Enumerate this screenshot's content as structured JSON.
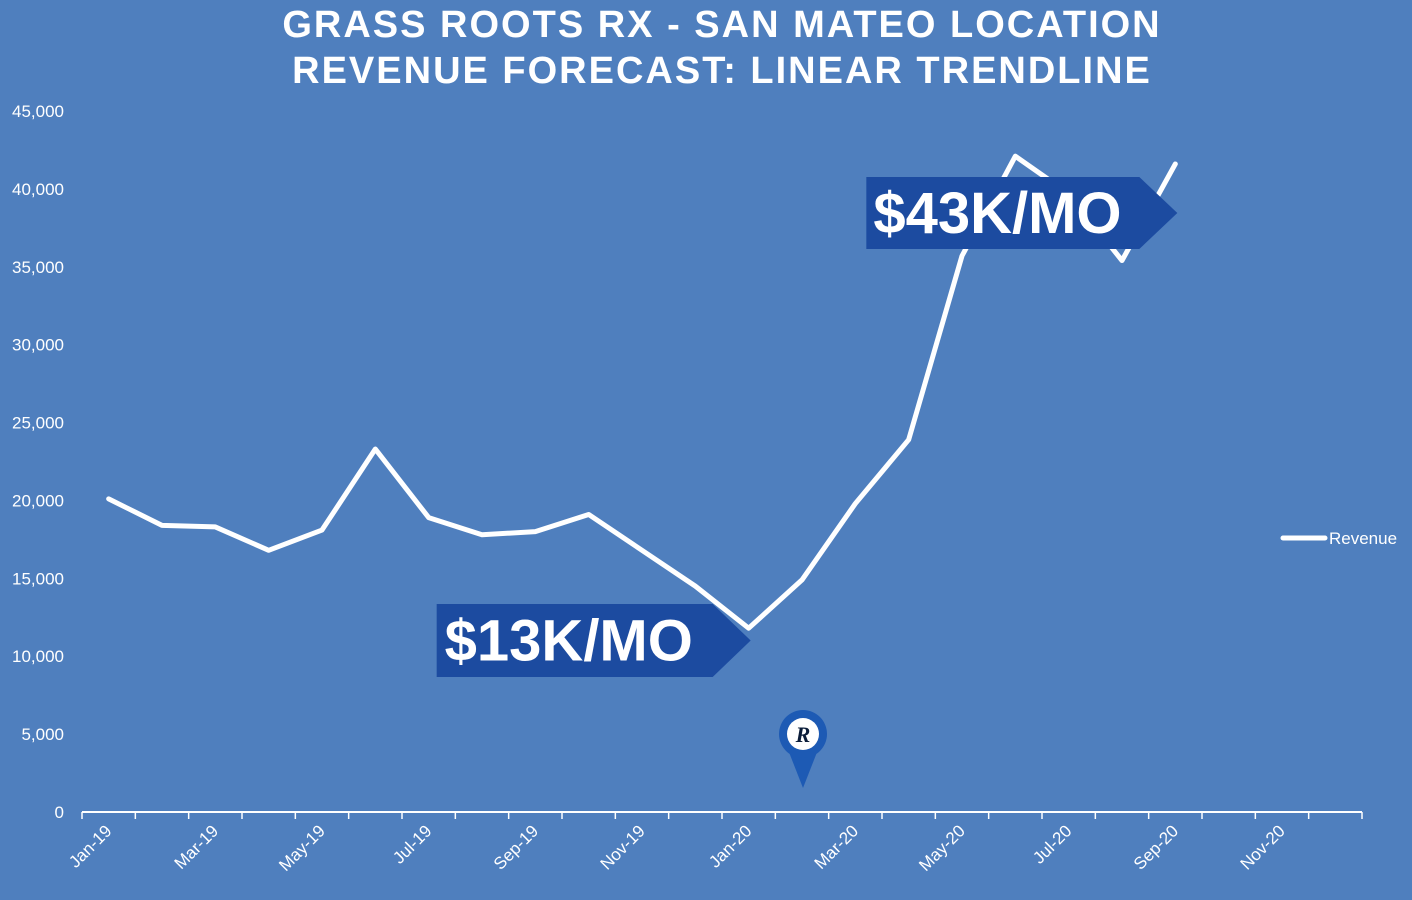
{
  "chart_data": {
    "type": "line",
    "title": "GRASS ROOTS RX - SAN MATEO LOCATION",
    "subtitle": "REVENUE FORECAST: LINEAR TRENDLINE",
    "xlabel": "",
    "ylabel": "",
    "ylim": [
      0,
      45000
    ],
    "yticks": [
      "0",
      "5,000",
      "10,000",
      "15,000",
      "20,000",
      "25,000",
      "30,000",
      "35,000",
      "40,000",
      "45,000"
    ],
    "xticks": [
      "Jan-19",
      "Mar-19",
      "May-19",
      "Jul-19",
      "Sep-19",
      "Nov-19",
      "Jan-20",
      "Mar-20",
      "May-20",
      "Jul-20",
      "Sep-20",
      "Nov-20"
    ],
    "x_range": [
      "Jan-19",
      "Dec-20"
    ],
    "grid": false,
    "legend": "right",
    "series": [
      {
        "name": "Revenue",
        "color": "#ffffff",
        "x": [
          "Jan-19",
          "Feb-19",
          "Mar-19",
          "Apr-19",
          "May-19",
          "Jun-19",
          "Jul-19",
          "Aug-19",
          "Sep-19",
          "Oct-19",
          "Nov-19",
          "Dec-19",
          "Jan-20",
          "Feb-20",
          "Mar-20",
          "Apr-20",
          "May-20",
          "Jun-20",
          "Jul-20",
          "Aug-20",
          "Sep-20"
        ],
        "values": [
          20100,
          18400,
          18300,
          16800,
          18100,
          23300,
          18900,
          17800,
          18000,
          19100,
          16800,
          14500,
          11800,
          14900,
          19800,
          23900,
          35700,
          42100,
          39700,
          35400,
          41600
        ]
      }
    ],
    "annotations": [
      {
        "text": "$13K/MO",
        "anchor_month": "Jan-20",
        "color": "#1c4ba0"
      },
      {
        "text": "$43K/MO",
        "anchor_month": "Sep-20",
        "color": "#1c4ba0"
      }
    ],
    "marker": {
      "icon": "location-pin-icon",
      "letter": "R",
      "month": "Feb-20"
    }
  }
}
